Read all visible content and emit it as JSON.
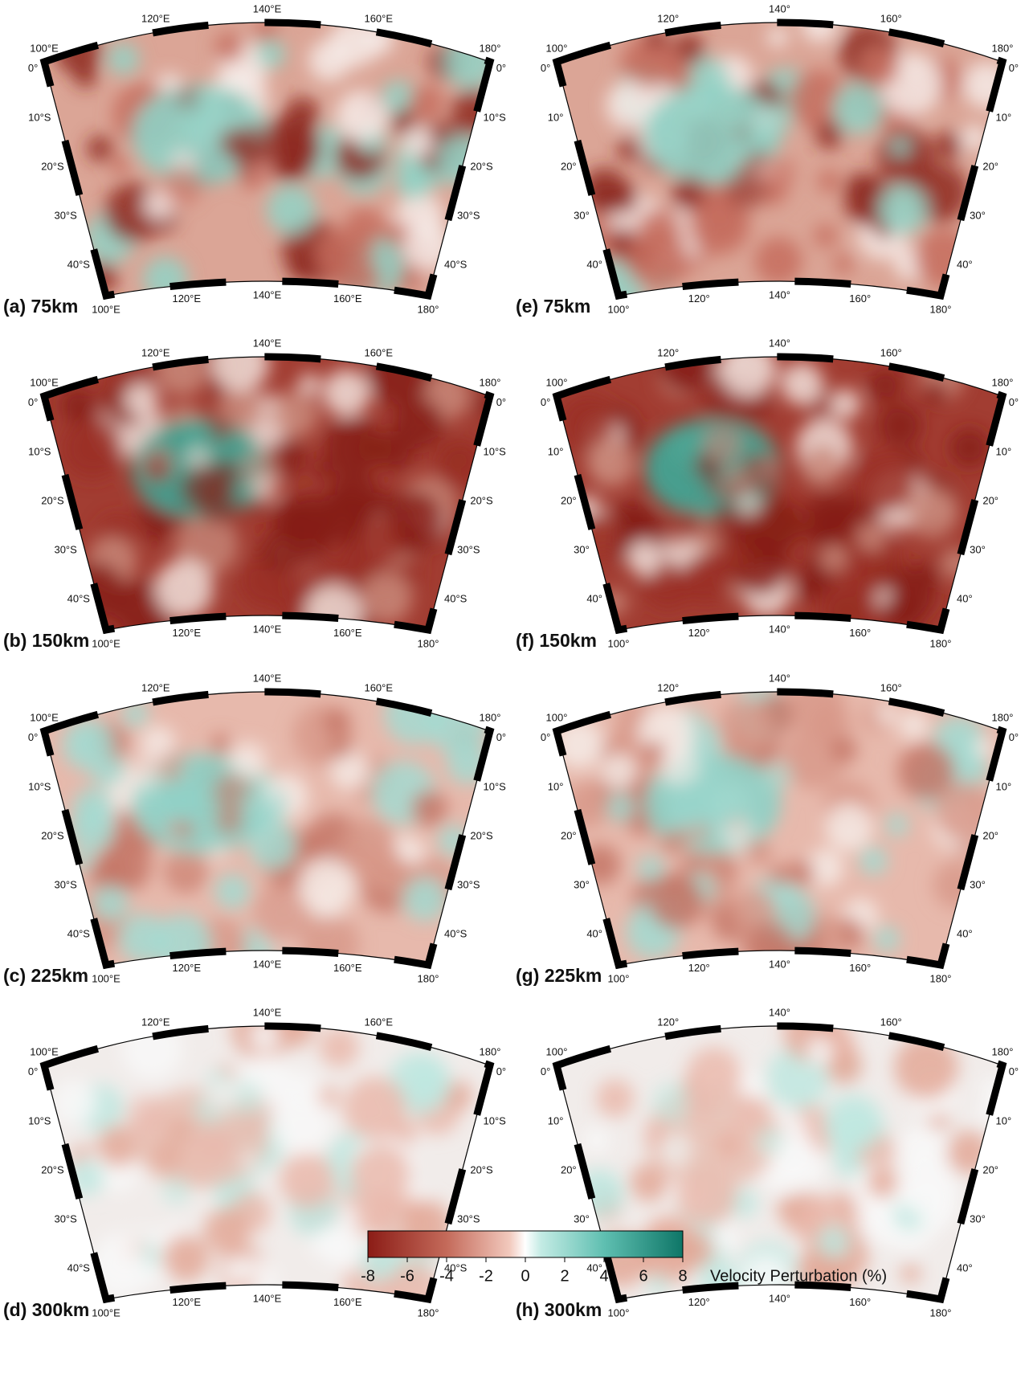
{
  "columns": [
    {
      "lon_labels": [
        "100°E",
        "120°E",
        "140°E",
        "160°E",
        "180°"
      ],
      "lat_labels": [
        "0°",
        "10°S",
        "20°S",
        "30°S",
        "40°S"
      ],
      "panels": [
        "(a) 75km",
        "(b) 150km",
        "(c) 225km",
        "(d) 300km"
      ]
    },
    {
      "lon_labels": [
        "100°",
        "120°",
        "140°",
        "160°",
        "180°"
      ],
      "lat_labels": [
        "0°",
        "10°",
        "20°",
        "30°",
        "40°"
      ],
      "panels": [
        "(e) 75km",
        "(f) 150km",
        "(g) 225km",
        "(h) 300km"
      ]
    }
  ],
  "colorbar": {
    "label": "Velocity Perturbation (%)",
    "lim": [
      -8,
      8
    ],
    "ticks": [
      -8,
      -6,
      -4,
      -2,
      0,
      2,
      4,
      6,
      8
    ]
  }
}
